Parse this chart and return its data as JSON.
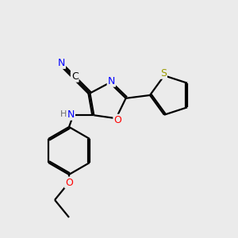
{
  "bg_color": "#ebebeb",
  "bond_color": "#000000",
  "atom_colors": {
    "N": "#0000ff",
    "O": "#ff0000",
    "S": "#999900",
    "C": "#000000",
    "H": "#6a6a6a"
  },
  "lw": 1.6,
  "fontsize": 9
}
